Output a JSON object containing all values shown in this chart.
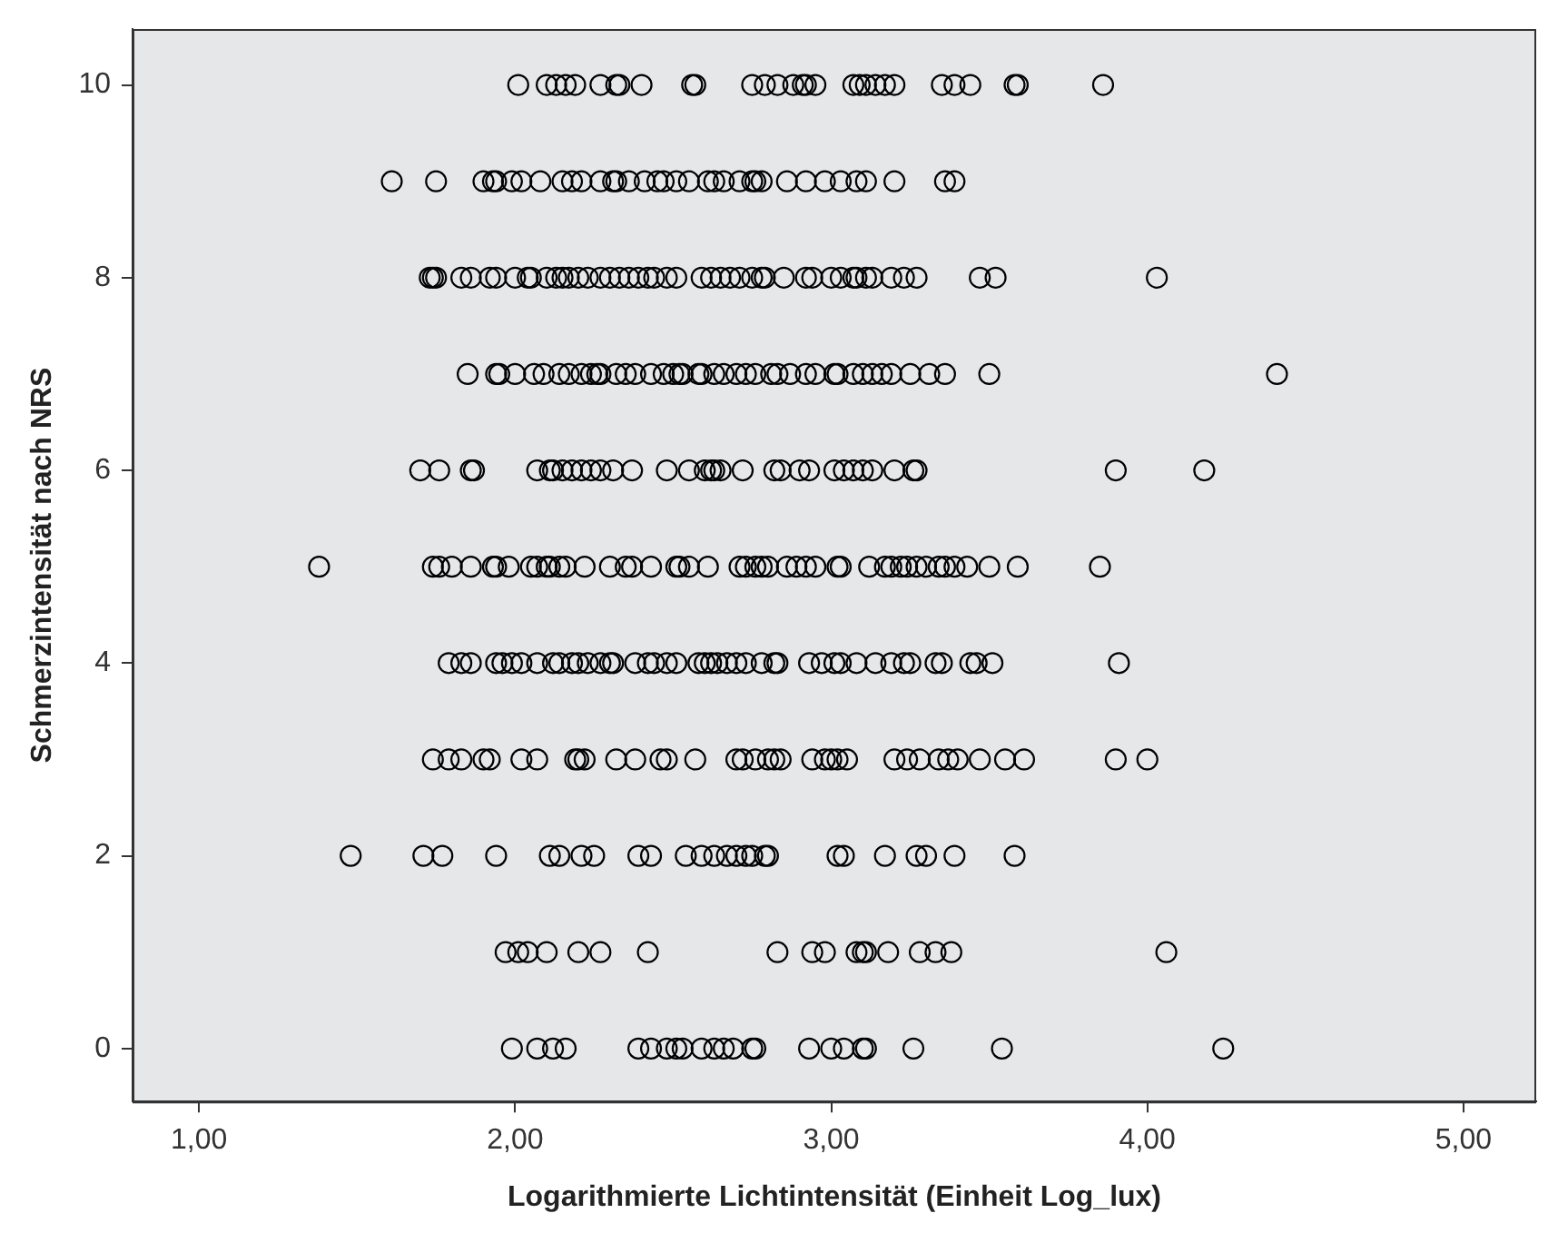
{
  "chart_data": {
    "type": "scatter",
    "xlabel": "Logarithmierte Lichtintensität (Einheit Log_lux)",
    "ylabel": "Schmerzintensität nach NRS",
    "xlim": [
      0.79,
      5.23
    ],
    "ylim": [
      -0.55,
      10.58
    ],
    "xticks": [
      {
        "value": 1,
        "label": "1,00"
      },
      {
        "value": 2,
        "label": "2,00"
      },
      {
        "value": 3,
        "label": "3,00"
      },
      {
        "value": 4,
        "label": "4,00"
      },
      {
        "value": 5,
        "label": "5,00"
      }
    ],
    "yticks": [
      0,
      2,
      4,
      6,
      8,
      10
    ],
    "grid": false,
    "legend": false,
    "marker": "circle",
    "series": [
      {
        "color": "#000000",
        "x": [
          2.01,
          2.1,
          2.13,
          2.16,
          2.19,
          2.27,
          2.32,
          2.33,
          2.4,
          2.56,
          2.57,
          2.75,
          2.79,
          2.83,
          2.88,
          2.91,
          2.92,
          2.95,
          3.07,
          3.09,
          3.11,
          3.14,
          3.17,
          3.2,
          3.35,
          3.39,
          3.44,
          3.58,
          3.59,
          3.86,
          1.61,
          1.75,
          1.9,
          1.93,
          1.94,
          1.99,
          2.02,
          2.08,
          2.15,
          2.18,
          2.21,
          2.27,
          2.31,
          2.32,
          2.36,
          2.41,
          2.45,
          2.47,
          2.51,
          2.55,
          2.61,
          2.63,
          2.66,
          2.71,
          2.75,
          2.76,
          2.78,
          2.86,
          2.92,
          2.98,
          3.03,
          3.08,
          3.11,
          3.2,
          3.36,
          3.39,
          1.73,
          1.74,
          1.75,
          1.83,
          1.86,
          1.92,
          1.94,
          2.0,
          2.04,
          2.05,
          2.1,
          2.13,
          2.15,
          2.17,
          2.2,
          2.23,
          2.27,
          2.3,
          2.33,
          2.36,
          2.39,
          2.42,
          2.44,
          2.48,
          2.51,
          2.59,
          2.62,
          2.65,
          2.68,
          2.71,
          2.75,
          2.78,
          2.79,
          2.85,
          2.92,
          2.94,
          3.0,
          3.03,
          3.07,
          3.08,
          3.11,
          3.13,
          3.19,
          3.23,
          3.27,
          3.47,
          3.52,
          4.03,
          1.85,
          1.94,
          1.95,
          2.0,
          2.06,
          2.09,
          2.14,
          2.17,
          2.21,
          2.24,
          2.26,
          2.27,
          2.32,
          2.35,
          2.38,
          2.43,
          2.47,
          2.5,
          2.52,
          2.53,
          2.58,
          2.59,
          2.63,
          2.66,
          2.7,
          2.73,
          2.76,
          2.81,
          2.83,
          2.87,
          2.92,
          2.95,
          3.01,
          3.02,
          3.07,
          3.1,
          3.13,
          3.16,
          3.19,
          3.25,
          3.31,
          3.36,
          3.5,
          4.41,
          1.7,
          1.76,
          1.86,
          1.87,
          2.07,
          2.11,
          2.12,
          2.15,
          2.18,
          2.21,
          2.24,
          2.27,
          2.31,
          2.37,
          2.48,
          2.55,
          2.6,
          2.62,
          2.63,
          2.65,
          2.72,
          2.82,
          2.84,
          2.9,
          2.93,
          3.01,
          3.04,
          3.07,
          3.1,
          3.13,
          3.2,
          3.26,
          3.27,
          3.9,
          4.18,
          1.38,
          1.74,
          1.76,
          1.8,
          1.86,
          1.93,
          1.94,
          1.98,
          2.05,
          2.07,
          2.1,
          2.11,
          2.14,
          2.16,
          2.22,
          2.3,
          2.35,
          2.37,
          2.43,
          2.51,
          2.52,
          2.55,
          2.61,
          2.71,
          2.73,
          2.76,
          2.78,
          2.8,
          2.86,
          2.89,
          2.92,
          2.95,
          3.02,
          3.03,
          3.12,
          3.17,
          3.19,
          3.22,
          3.24,
          3.27,
          3.3,
          3.34,
          3.36,
          3.39,
          3.43,
          3.5,
          3.59,
          3.85,
          1.79,
          1.83,
          1.86,
          1.94,
          1.96,
          1.99,
          2.02,
          2.07,
          2.12,
          2.14,
          2.18,
          2.2,
          2.23,
          2.27,
          2.3,
          2.31,
          2.38,
          2.42,
          2.44,
          2.48,
          2.51,
          2.58,
          2.6,
          2.62,
          2.64,
          2.67,
          2.7,
          2.73,
          2.78,
          2.82,
          2.83,
          2.93,
          2.97,
          3.01,
          3.03,
          3.08,
          3.14,
          3.19,
          3.23,
          3.25,
          3.33,
          3.35,
          3.44,
          3.46,
          3.51,
          3.91,
          1.74,
          1.79,
          1.83,
          1.9,
          1.92,
          2.02,
          2.07,
          2.19,
          2.2,
          2.22,
          2.32,
          2.38,
          2.46,
          2.48,
          2.57,
          2.7,
          2.72,
          2.76,
          2.8,
          2.82,
          2.84,
          2.94,
          2.98,
          3.0,
          3.02,
          3.05,
          3.2,
          3.24,
          3.28,
          3.34,
          3.37,
          3.4,
          3.47,
          3.55,
          3.61,
          3.9,
          4.0,
          1.48,
          1.71,
          1.77,
          1.94,
          2.11,
          2.14,
          2.21,
          2.25,
          2.39,
          2.43,
          2.54,
          2.59,
          2.63,
          2.67,
          2.7,
          2.73,
          2.75,
          2.79,
          2.8,
          3.02,
          3.04,
          3.17,
          3.27,
          3.3,
          3.39,
          3.58,
          1.97,
          2.01,
          2.04,
          2.1,
          2.2,
          2.27,
          2.42,
          2.83,
          2.94,
          2.98,
          3.08,
          3.1,
          3.11,
          3.18,
          3.28,
          3.33,
          3.38,
          4.06,
          1.99,
          2.07,
          2.12,
          2.16,
          2.39,
          2.43,
          2.48,
          2.51,
          2.53,
          2.59,
          2.63,
          2.66,
          2.69,
          2.75,
          2.76,
          2.93,
          3.0,
          3.04,
          3.1,
          3.11,
          3.26,
          3.54,
          4.24
        ],
        "values": [
          10,
          10,
          10,
          10,
          10,
          10,
          10,
          10,
          10,
          10,
          10,
          10,
          10,
          10,
          10,
          10,
          10,
          10,
          10,
          10,
          10,
          10,
          10,
          10,
          10,
          10,
          10,
          10,
          10,
          10,
          9,
          9,
          9,
          9,
          9,
          9,
          9,
          9,
          9,
          9,
          9,
          9,
          9,
          9,
          9,
          9,
          9,
          9,
          9,
          9,
          9,
          9,
          9,
          9,
          9,
          9,
          9,
          9,
          9,
          9,
          9,
          9,
          9,
          9,
          9,
          9,
          8,
          8,
          8,
          8,
          8,
          8,
          8,
          8,
          8,
          8,
          8,
          8,
          8,
          8,
          8,
          8,
          8,
          8,
          8,
          8,
          8,
          8,
          8,
          8,
          8,
          8,
          8,
          8,
          8,
          8,
          8,
          8,
          8,
          8,
          8,
          8,
          8,
          8,
          8,
          8,
          8,
          8,
          8,
          8,
          8,
          8,
          8,
          8,
          7,
          7,
          7,
          7,
          7,
          7,
          7,
          7,
          7,
          7,
          7,
          7,
          7,
          7,
          7,
          7,
          7,
          7,
          7,
          7,
          7,
          7,
          7,
          7,
          7,
          7,
          7,
          7,
          7,
          7,
          7,
          7,
          7,
          7,
          7,
          7,
          7,
          7,
          7,
          7,
          7,
          7,
          7,
          7,
          6,
          6,
          6,
          6,
          6,
          6,
          6,
          6,
          6,
          6,
          6,
          6,
          6,
          6,
          6,
          6,
          6,
          6,
          6,
          6,
          6,
          6,
          6,
          6,
          6,
          6,
          6,
          6,
          6,
          6,
          6,
          6,
          6,
          6,
          6,
          5,
          5,
          5,
          5,
          5,
          5,
          5,
          5,
          5,
          5,
          5,
          5,
          5,
          5,
          5,
          5,
          5,
          5,
          5,
          5,
          5,
          5,
          5,
          5,
          5,
          5,
          5,
          5,
          5,
          5,
          5,
          5,
          5,
          5,
          5,
          5,
          5,
          5,
          5,
          5,
          5,
          5,
          5,
          5,
          5,
          5,
          5,
          5,
          4,
          4,
          4,
          4,
          4,
          4,
          4,
          4,
          4,
          4,
          4,
          4,
          4,
          4,
          4,
          4,
          4,
          4,
          4,
          4,
          4,
          4,
          4,
          4,
          4,
          4,
          4,
          4,
          4,
          4,
          4,
          4,
          4,
          4,
          4,
          4,
          4,
          4,
          4,
          4,
          4,
          4,
          4,
          4,
          4,
          4,
          3,
          3,
          3,
          3,
          3,
          3,
          3,
          3,
          3,
          3,
          3,
          3,
          3,
          3,
          3,
          3,
          3,
          3,
          3,
          3,
          3,
          3,
          3,
          3,
          3,
          3,
          3,
          3,
          3,
          3,
          3,
          3,
          3,
          3,
          3,
          3,
          3,
          2,
          2,
          2,
          2,
          2,
          2,
          2,
          2,
          2,
          2,
          2,
          2,
          2,
          2,
          2,
          2,
          2,
          2,
          2,
          2,
          2,
          2,
          2,
          2,
          2,
          2,
          1,
          1,
          1,
          1,
          1,
          1,
          1,
          1,
          1,
          1,
          1,
          1,
          1,
          1,
          1,
          1,
          1,
          1,
          0,
          0,
          0,
          0,
          0,
          0,
          0,
          0,
          0,
          0,
          0,
          0,
          0,
          0,
          0,
          0,
          0,
          0,
          0,
          0,
          0,
          0,
          0
        ]
      }
    ]
  }
}
